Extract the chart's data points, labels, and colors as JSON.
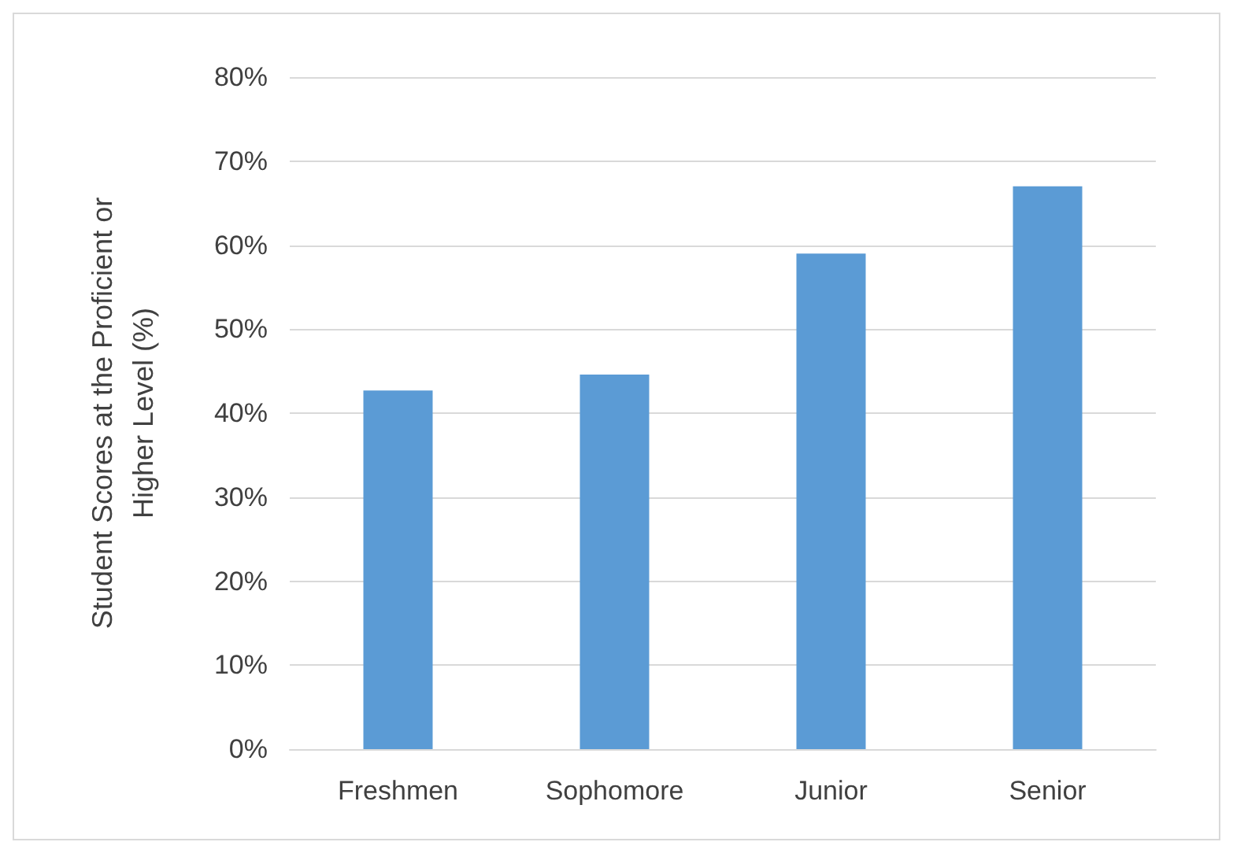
{
  "chart_data": {
    "type": "bar",
    "ylabel": "Student Scores at the Proficient or Higher Level (%)",
    "categories": [
      "Freshmen",
      "Sophomore",
      "Junior",
      "Senior"
    ],
    "values": [
      42.7,
      44.6,
      59,
      67
    ],
    "color": "#5b9bd5",
    "ylim": [
      0,
      80
    ],
    "yticks": [
      {
        "value": 0,
        "label": "0%"
      },
      {
        "value": 10,
        "label": "10%"
      },
      {
        "value": 20,
        "label": "20%"
      },
      {
        "value": 30,
        "label": "30%"
      },
      {
        "value": 40,
        "label": "40%"
      },
      {
        "value": 50,
        "label": "50%"
      },
      {
        "value": 60,
        "label": "60%"
      },
      {
        "value": 70,
        "label": "70%"
      },
      {
        "value": 80,
        "label": "80%"
      }
    ],
    "grid": "y"
  }
}
